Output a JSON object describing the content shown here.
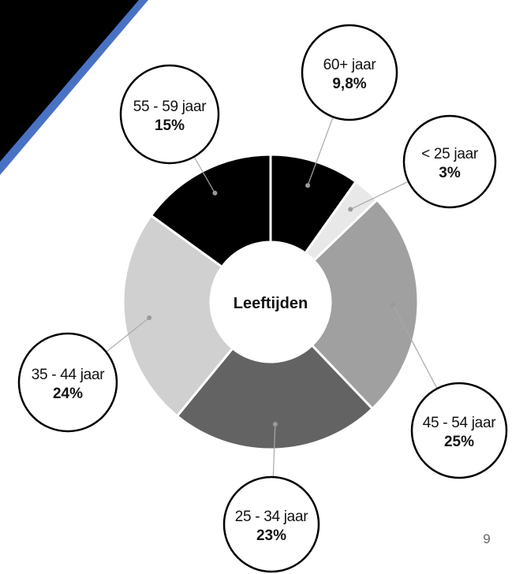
{
  "chart_data": {
    "type": "pie",
    "title": "",
    "center_label": "Leeftijden",
    "slices": [
      {
        "label": "60+ jaar",
        "value_text": "9,8%",
        "value": 9.8,
        "color": "#000000"
      },
      {
        "label": "< 25 jaar",
        "value_text": "3%",
        "value": 3,
        "color": "#e8e8e8"
      },
      {
        "label": "45 - 54 jaar",
        "value_text": "25%",
        "value": 25,
        "color": "#a0a0a0"
      },
      {
        "label": "25 - 34 jaar",
        "value_text": "23%",
        "value": 23,
        "color": "#636363"
      },
      {
        "label": "35 - 44 jaar",
        "value_text": "24%",
        "value": 24,
        "color": "#d0d0d0"
      },
      {
        "label": "55 - 59 jaar",
        "value_text": "15%",
        "value": 15,
        "color": "#000000"
      }
    ],
    "start_angle_deg": 0,
    "direction": "clockwise",
    "legend": "callout-circles"
  },
  "page": {
    "number": "9"
  },
  "colors": {
    "corner_dark": "#000000",
    "corner_accent": "#4a72c4",
    "separator": "#ffffff",
    "leader_line": "#a8a8a8"
  }
}
